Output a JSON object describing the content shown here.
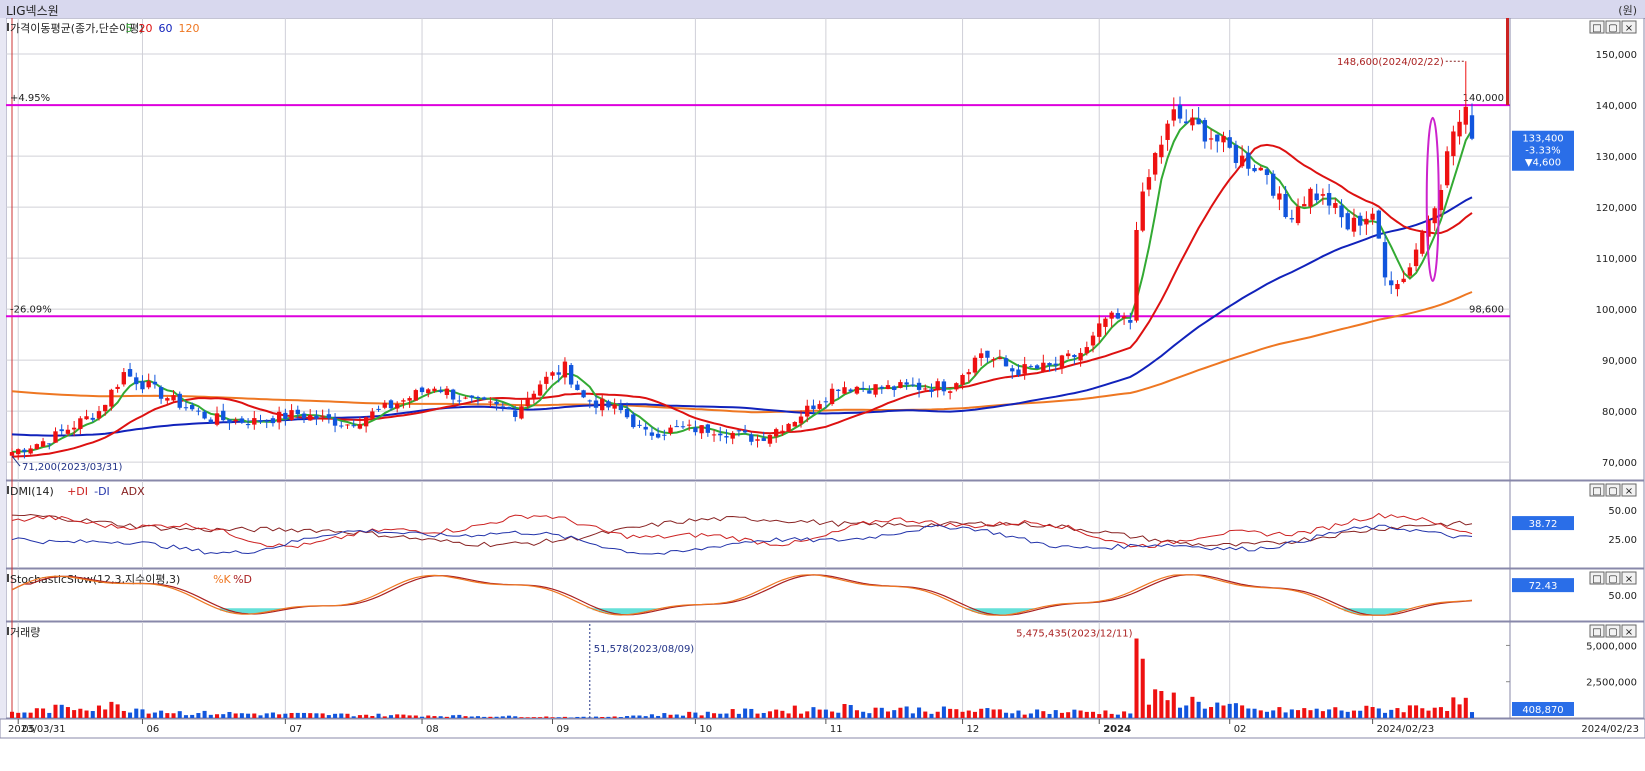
{
  "window": {
    "title": "LIG넥스원",
    "unit_label": "(원)"
  },
  "panels": {
    "price": {
      "label_parts": [
        "가격이동평균(종가,단순이평)",
        "5",
        "20",
        "60",
        "120"
      ]
    },
    "dmi": {
      "label_parts": [
        "DMI(14)",
        "+DI",
        "-DI",
        "ADX"
      ]
    },
    "stoch": {
      "label_parts": [
        "StochasticSlow(12,3,지수이평,3)",
        "%K",
        "%D"
      ]
    },
    "volume": {
      "label": "거래량"
    }
  },
  "panel_buttons": [
    "□",
    "▢",
    "×"
  ],
  "annotations": {
    "upper_pct": "+4.95%",
    "lower_pct": "-26.09%",
    "upper_line_value": "140,000",
    "lower_line_value": "98,600",
    "max_label": "148,600(2024/02/22)",
    "min_label": "71,200(2023/03/31)",
    "current_price": "133,400",
    "current_change_pct": "-3.33%",
    "current_change": "▼4,600",
    "dmi_value_a": "50.00",
    "dmi_value_b": "38.72",
    "dmi_value_c": "25.00",
    "stoch_value_a": "72.43",
    "stoch_value_b": "50.00",
    "vol_max_label": "5,475,435(2023/12/11)",
    "vol_min_label": "51,578(2023/08/09)",
    "vol_current": "408,870"
  },
  "colors": {
    "up": "#ee1111",
    "down": "#1155dd",
    "ma5": "#33aa33",
    "ma20": "#dd1111",
    "ma60": "#1122bb",
    "ma120": "#ee7722",
    "hline": "#dd00dd",
    "plus_di": "#cc2222",
    "minus_di": "#2233aa",
    "adx": "#882222",
    "stoch_k": "#ee7722",
    "stoch_d": "#aa2222",
    "stoch_fill": "#66e0d8"
  },
  "chart_data": {
    "type": "candlestick",
    "x_ticks": [
      "2023/03/31",
      "05",
      "06",
      "07",
      "08",
      "09",
      "10",
      "11",
      "12",
      "2024",
      "02",
      "2024/02/23"
    ],
    "price_axis": {
      "ylim": [
        66500,
        155500
      ],
      "ticks": [
        "70,000",
        "80,000",
        "90,000",
        "100,000",
        "110,000",
        "120,000",
        "130,000",
        "140,000",
        "150,000"
      ]
    },
    "volume_axis": {
      "ylim": [
        0,
        6200000
      ],
      "ticks": [
        "2,500,000",
        "5,000,000"
      ]
    },
    "dmi_axis": {
      "ylim": [
        0,
        75
      ],
      "ticks": [
        "25.00",
        "50.00"
      ]
    },
    "stoch_axis": {
      "ylim": [
        0,
        100
      ],
      "ticks": [
        "50.00"
      ]
    },
    "horizontal_lines": [
      140000,
      98600
    ],
    "highlight_date": "2024/01/02",
    "close_anchors": [
      {
        "d": "2023-03-31",
        "v": 72000
      },
      {
        "d": "2023-04-10",
        "v": 74500
      },
      {
        "d": "2023-04-20",
        "v": 80000
      },
      {
        "d": "2023-04-26",
        "v": 87500
      },
      {
        "d": "2023-05-08",
        "v": 82000
      },
      {
        "d": "2023-05-16",
        "v": 78500
      },
      {
        "d": "2023-05-25",
        "v": 78000
      },
      {
        "d": "2023-06-05",
        "v": 79500
      },
      {
        "d": "2023-06-15",
        "v": 77500
      },
      {
        "d": "2023-06-26",
        "v": 81000
      },
      {
        "d": "2023-07-05",
        "v": 85000
      },
      {
        "d": "2023-07-12",
        "v": 82000
      },
      {
        "d": "2023-07-24",
        "v": 80000
      },
      {
        "d": "2023-07-28",
        "v": 85500
      },
      {
        "d": "2023-08-03",
        "v": 88500
      },
      {
        "d": "2023-08-08",
        "v": 82500
      },
      {
        "d": "2023-08-16",
        "v": 80000
      },
      {
        "d": "2023-08-22",
        "v": 75500
      },
      {
        "d": "2023-08-29",
        "v": 76500
      },
      {
        "d": "2023-09-06",
        "v": 76500
      },
      {
        "d": "2023-09-15",
        "v": 74500
      },
      {
        "d": "2023-09-25",
        "v": 78500
      },
      {
        "d": "2023-10-04",
        "v": 85000
      },
      {
        "d": "2023-10-16",
        "v": 84500
      },
      {
        "d": "2023-10-30",
        "v": 85000
      },
      {
        "d": "2023-11-06",
        "v": 91500
      },
      {
        "d": "2023-11-13",
        "v": 88000
      },
      {
        "d": "2023-11-21",
        "v": 88500
      },
      {
        "d": "2023-11-29",
        "v": 92000
      },
      {
        "d": "2023-12-04",
        "v": 98000
      },
      {
        "d": "2023-12-08",
        "v": 97500
      },
      {
        "d": "2023-12-11",
        "v": 117000
      },
      {
        "d": "2023-12-14",
        "v": 130000
      },
      {
        "d": "2023-12-19",
        "v": 138000
      },
      {
        "d": "2023-12-27",
        "v": 134000
      },
      {
        "d": "2024-01-02",
        "v": 130000
      },
      {
        "d": "2024-01-09",
        "v": 127000
      },
      {
        "d": "2024-01-12",
        "v": 118000
      },
      {
        "d": "2024-01-18",
        "v": 123000
      },
      {
        "d": "2024-01-23",
        "v": 121000
      },
      {
        "d": "2024-01-26",
        "v": 116000
      },
      {
        "d": "2024-02-01",
        "v": 119000
      },
      {
        "d": "2024-02-05",
        "v": 106000
      },
      {
        "d": "2024-02-08",
        "v": 106000
      },
      {
        "d": "2024-02-14",
        "v": 118000
      },
      {
        "d": "2024-02-16",
        "v": 125000
      },
      {
        "d": "2024-02-20",
        "v": 135000
      },
      {
        "d": "2024-02-22",
        "v": 138000
      },
      {
        "d": "2024-02-23",
        "v": 133400
      }
    ],
    "volume_anchors": [
      {
        "d": "2023-03-31",
        "v": 350000
      },
      {
        "d": "2023-04-20",
        "v": 900000
      },
      {
        "d": "2023-05-10",
        "v": 350000
      },
      {
        "d": "2023-08-09",
        "v": 51578
      },
      {
        "d": "2023-10-05",
        "v": 700000
      },
      {
        "d": "2023-11-01",
        "v": 500000
      },
      {
        "d": "2023-12-08",
        "v": 400000
      },
      {
        "d": "2023-12-11",
        "v": 5475435
      },
      {
        "d": "2023-12-12",
        "v": 4000000
      },
      {
        "d": "2023-12-13",
        "v": 1300000
      },
      {
        "d": "2023-12-18",
        "v": 1400000
      },
      {
        "d": "2024-01-05",
        "v": 500000
      },
      {
        "d": "2024-02-06",
        "v": 600000
      },
      {
        "d": "2024-02-14",
        "v": 800000
      },
      {
        "d": "2024-02-22",
        "v": 1050000
      },
      {
        "d": "2024-02-23",
        "v": 408870
      }
    ]
  }
}
